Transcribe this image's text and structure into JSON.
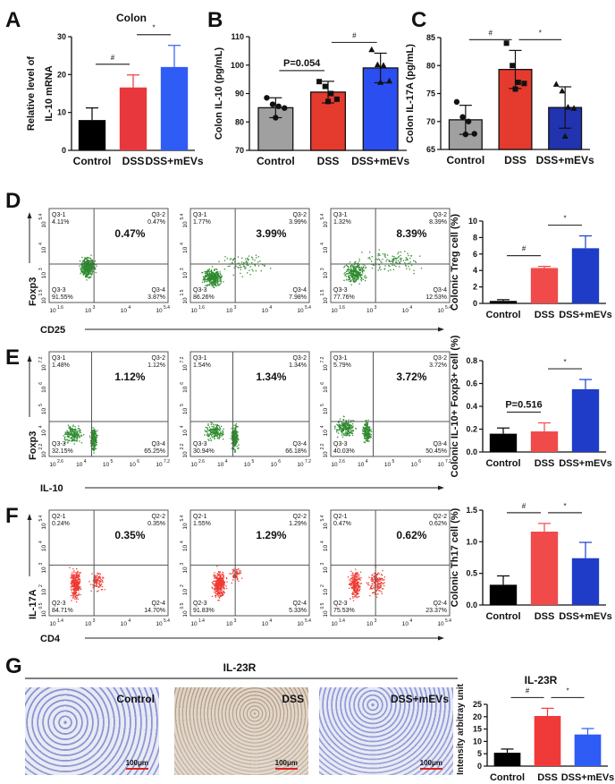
{
  "panel_labels": {
    "A": "A",
    "B": "B",
    "C": "C",
    "D": "D",
    "E": "E",
    "F": "F",
    "G": "G"
  },
  "chart_data": [
    {
      "id": "A",
      "type": "bar",
      "title": "Colon",
      "ylabel": "Relative level of IL-10 mRNA",
      "ylabel_lines": [
        "Relative level of",
        "IL-10 mRNA"
      ],
      "categories": [
        "Control",
        "DSS",
        "DSS+mEVs"
      ],
      "values": [
        8.0,
        16.6,
        22.0
      ],
      "errors": [
        3.2,
        3.3,
        5.7
      ],
      "ylim": [
        0,
        30
      ],
      "yticks": [
        "0",
        "10",
        "20",
        "30"
      ],
      "colors": [
        "#000000",
        "#e8383d",
        "#2f5cf5"
      ],
      "significance": [
        {
          "from": 0,
          "to": 1,
          "label": "#"
        },
        {
          "from": 1,
          "to": 2,
          "label": "*"
        }
      ]
    },
    {
      "id": "B",
      "type": "bar",
      "title": "",
      "ylabel": "Colon IL-10 (pg/mL)",
      "ylabel_lines": [
        "Colon IL-10 (pg/mL)"
      ],
      "categories": [
        "Control",
        "DSS",
        "DSS+mEVs"
      ],
      "values": [
        85.0,
        90.5,
        99.0
      ],
      "errors": [
        3.5,
        3.8,
        5.2
      ],
      "points": [
        [
          88.5,
          86.2,
          85.5,
          84.9,
          81.5
        ],
        [
          94.2,
          92.5,
          90.0,
          88.0,
          87.2
        ],
        [
          105.5,
          100.2,
          100.0,
          94.5,
          94.0
        ]
      ],
      "point_shapes": [
        "circle",
        "square",
        "triangle"
      ],
      "ylim": [
        70,
        110
      ],
      "yticks": [
        "70",
        "80",
        "90",
        "100",
        "110"
      ],
      "colors": [
        "#a0a0a0",
        "#e53a2e",
        "#2b4ef0"
      ],
      "significance": [
        {
          "from": 0,
          "to": 1,
          "label": "P=0.054"
        },
        {
          "from": 1,
          "to": 2,
          "label": "#"
        }
      ]
    },
    {
      "id": "C",
      "type": "bar",
      "title": "",
      "ylabel": "Colon IL-17A (pg/mL)",
      "ylabel_lines": [
        "Colon IL-17A (pg/mL)"
      ],
      "categories": [
        "Control",
        "DSS",
        "DSS+mEVs"
      ],
      "values": [
        70.3,
        79.3,
        72.5
      ],
      "errors": [
        2.6,
        3.4,
        3.7
      ],
      "points": [
        [
          73.5,
          70.8,
          70.0,
          67.8,
          67.7
        ],
        [
          84.0,
          80.0,
          77.0,
          76.8,
          75.8
        ],
        [
          76.7,
          75.5,
          72.6,
          72.4,
          67.4
        ]
      ],
      "point_shapes": [
        "circle",
        "square",
        "triangle"
      ],
      "ylim": [
        65,
        85
      ],
      "yticks": [
        "65",
        "70",
        "75",
        "80",
        "85"
      ],
      "colors": [
        "#a0a0a0",
        "#e53a2e",
        "#2233b0"
      ],
      "significance": [
        {
          "from": 0,
          "to": 1,
          "label": "#"
        },
        {
          "from": 1,
          "to": 2,
          "label": "*"
        }
      ]
    },
    {
      "id": "D",
      "type": "bar",
      "title": "",
      "ylabel": "Colonic Treg cell (%)",
      "ylabel_lines": [
        "Colonic Treg cell (%)"
      ],
      "categories": [
        "Control",
        "DSS",
        "DSS+mEVs"
      ],
      "values": [
        0.3,
        4.3,
        6.7
      ],
      "errors": [
        0.15,
        0.2,
        1.5
      ],
      "ylim": [
        0,
        10
      ],
      "yticks": [
        "0",
        "2",
        "4",
        "6",
        "8",
        "10"
      ],
      "colors": [
        "#000000",
        "#f04a4a",
        "#1e3cc8"
      ],
      "significance": [
        {
          "from": 0,
          "to": 1,
          "label": "#"
        },
        {
          "from": 1,
          "to": 2,
          "label": "*"
        }
      ]
    },
    {
      "id": "E",
      "type": "bar",
      "title": "",
      "ylabel": "Colonic IL-10+ Foxp3+ cell (%)",
      "ylabel_lines": [
        "Colonic IL-10+ Foxp3+ cell (%)"
      ],
      "categories": [
        "Control",
        "DSS",
        "DSS+mEVs"
      ],
      "values": [
        0.16,
        0.18,
        0.55
      ],
      "errors": [
        0.05,
        0.075,
        0.085
      ],
      "ylim": [
        0,
        0.8
      ],
      "yticks": [
        "0.0",
        "0.2",
        "0.4",
        "0.6",
        "0.8"
      ],
      "colors": [
        "#000000",
        "#f04a4a",
        "#1e3cc8"
      ],
      "significance": [
        {
          "from": 0,
          "to": 1,
          "label": "P=0.516"
        },
        {
          "from": 1,
          "to": 2,
          "label": "*"
        }
      ]
    },
    {
      "id": "F",
      "type": "bar",
      "title": "",
      "ylabel": "Colonic Th17 cell (%)",
      "ylabel_lines": [
        "Colonic Th17 cell (%)"
      ],
      "categories": [
        "Control",
        "DSS",
        "DSS+mEVs"
      ],
      "values": [
        0.32,
        1.16,
        0.74
      ],
      "errors": [
        0.14,
        0.13,
        0.25
      ],
      "ylim": [
        0,
        1.5
      ],
      "yticks": [
        "0.0",
        "0.5",
        "1.0",
        "1.5"
      ],
      "colors": [
        "#000000",
        "#f04a4a",
        "#1e3cc8"
      ],
      "significance": [
        {
          "from": 0,
          "to": 1,
          "label": "#"
        },
        {
          "from": 1,
          "to": 2,
          "label": "*"
        }
      ]
    },
    {
      "id": "G",
      "type": "bar",
      "title": "IL-23R",
      "ylabel": "Intensity arbitray unit",
      "ylabel_lines": [
        "Intensity arbitray unit"
      ],
      "categories": [
        "Control",
        "DSS",
        "DSS+mEVs"
      ],
      "values": [
        5.4,
        20.3,
        12.8
      ],
      "errors": [
        1.5,
        3.1,
        2.4
      ],
      "ylim": [
        0,
        25
      ],
      "yticks": [
        "0",
        "5",
        "10",
        "15",
        "20",
        "25"
      ],
      "colors": [
        "#000000",
        "#f03a3a",
        "#2f5cf5"
      ],
      "significance": [
        {
          "from": 0,
          "to": 1,
          "label": "#"
        },
        {
          "from": 1,
          "to": 2,
          "label": "*"
        }
      ]
    }
  ],
  "flow": {
    "tick_base": "10",
    "D": {
      "y_axis": "Foxp3",
      "x_axis": "CD25",
      "color": "#2e8b2e",
      "yticks": [
        "5.4",
        "4",
        "3",
        "1.5"
      ],
      "xticks": [
        "1.6",
        "3",
        "4",
        "5.4"
      ],
      "plots": [
        {
          "main": "0.47%",
          "q": [
            [
              "Q3-1",
              "4.11%"
            ],
            [
              "Q3-2",
              "0.47%"
            ],
            [
              "Q3-3",
              "91.55%"
            ],
            [
              "Q3-4",
              "3.87%"
            ]
          ]
        },
        {
          "main": "3.99%",
          "q": [
            [
              "Q3-1",
              "1.77%"
            ],
            [
              "Q3-2",
              "3.99%"
            ],
            [
              "Q3-3",
              "86.26%"
            ],
            [
              "Q3-4",
              "7.98%"
            ]
          ]
        },
        {
          "main": "8.39%",
          "q": [
            [
              "Q3-1",
              "1.32%"
            ],
            [
              "Q3-2",
              "8.39%"
            ],
            [
              "Q3-3",
              "77.76%"
            ],
            [
              "Q3-4",
              "12.53%"
            ]
          ]
        }
      ]
    },
    "E": {
      "y_axis": "Foxp3",
      "x_axis": "IL-10",
      "color": "#2e8b2e",
      "yticks": [
        "7.2",
        "6",
        "5",
        "4",
        "2.2"
      ],
      "xticks": [
        "2.6",
        "4",
        "5",
        "6",
        "7.2"
      ],
      "plots": [
        {
          "main": "1.12%",
          "q": [
            [
              "Q3-1",
              "1.48%"
            ],
            [
              "Q3-2",
              "1.12%"
            ],
            [
              "Q3-3",
              "32.15%"
            ],
            [
              "Q3-4",
              "65.25%"
            ]
          ]
        },
        {
          "main": "1.34%",
          "q": [
            [
              "Q3-1",
              "1.54%"
            ],
            [
              "Q3-2",
              "1.34%"
            ],
            [
              "Q3-3",
              "30.94%"
            ],
            [
              "Q3-4",
              "66.18%"
            ]
          ]
        },
        {
          "main": "3.72%",
          "q": [
            [
              "Q3-1",
              "5.79%"
            ],
            [
              "Q3-2",
              "3.72%"
            ],
            [
              "Q3-3",
              "40.03%"
            ],
            [
              "Q3-4",
              "50.45%"
            ]
          ]
        }
      ]
    },
    "F": {
      "y_axis": "IL-17A",
      "x_axis": "CD4",
      "color": "#ee3b33",
      "yticks": [
        "5.4",
        "4",
        "3",
        "2",
        "0.5"
      ],
      "xticks": [
        "1.4",
        "3",
        "4",
        "5.4"
      ],
      "plots": [
        {
          "main": "0.35%",
          "q": [
            [
              "Q2-1",
              "0.24%"
            ],
            [
              "Q2-2",
              "0.35%"
            ],
            [
              "Q2-3",
              "84.71%"
            ],
            [
              "Q2-4",
              "14.70%"
            ]
          ]
        },
        {
          "main": "1.29%",
          "q": [
            [
              "Q2-1",
              "1.55%"
            ],
            [
              "Q2-2",
              "1.29%"
            ],
            [
              "Q2-3",
              "91.83%"
            ],
            [
              "Q2-4",
              "5.33%"
            ]
          ]
        },
        {
          "main": "0.62%",
          "q": [
            [
              "Q2-1",
              "0.47%"
            ],
            [
              "Q2-2",
              "0.62%"
            ],
            [
              "Q2-3",
              "75.53%"
            ],
            [
              "Q2-4",
              "23.37%"
            ]
          ]
        }
      ]
    }
  },
  "histology": {
    "stain_title": "IL-23R",
    "images": [
      {
        "caption": "Control",
        "scale": "100μm"
      },
      {
        "caption": "DSS",
        "scale": "100μm"
      },
      {
        "caption": "DSS+mEVs",
        "scale": "100μm"
      }
    ]
  }
}
